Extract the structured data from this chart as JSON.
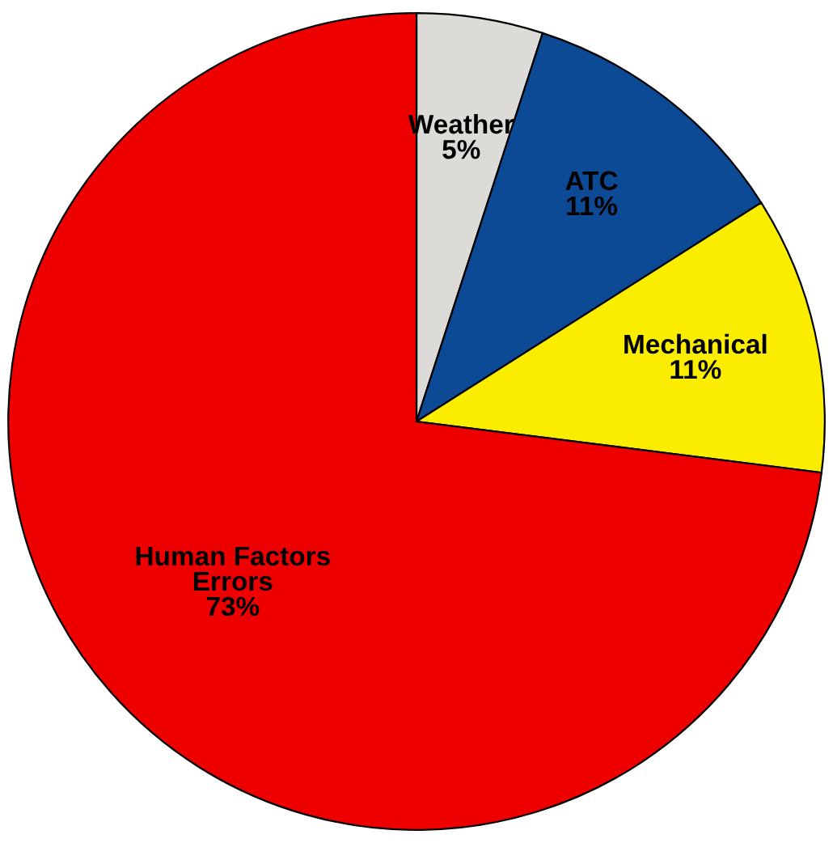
{
  "chart_data": {
    "type": "pie",
    "categories": [
      "Weather",
      "ATC",
      "Mechanical",
      "Human Factors\nErrors"
    ],
    "values": [
      5,
      11,
      11,
      73
    ],
    "colors": [
      "#dddbd7",
      "#0d4a96",
      "#fbed00",
      "#ee0000"
    ],
    "value_labels": [
      "5%",
      "11%",
      "11%",
      "73%"
    ],
    "legend": false
  }
}
